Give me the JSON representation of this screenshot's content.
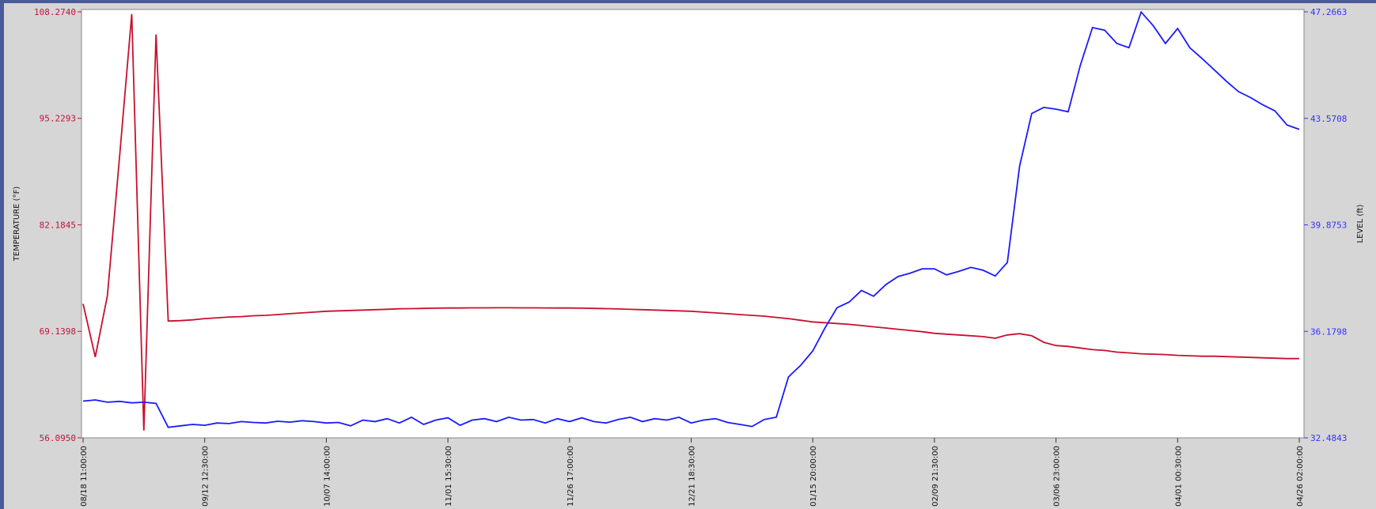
{
  "chart_data": {
    "type": "line",
    "ylabel": "TEMPERATURE (°F)",
    "y2label": "LEVEL (ft)",
    "categories": [
      "08/18 11:00:00",
      null,
      null,
      null,
      null,
      null,
      null,
      null,
      null,
      null,
      "09/12 12:30:00",
      null,
      null,
      null,
      null,
      null,
      null,
      null,
      null,
      null,
      "10/07 14:00:00",
      null,
      null,
      null,
      null,
      null,
      null,
      null,
      null,
      null,
      "11/01 15:30:00",
      null,
      null,
      null,
      null,
      null,
      null,
      null,
      null,
      null,
      "11/26 17:00:00",
      null,
      null,
      null,
      null,
      null,
      null,
      null,
      null,
      null,
      "12/21 18:30:00",
      null,
      null,
      null,
      null,
      null,
      null,
      null,
      null,
      null,
      "01/15 20:00:00",
      null,
      null,
      null,
      null,
      null,
      null,
      null,
      null,
      null,
      "02/09 21:30:00",
      null,
      null,
      null,
      null,
      null,
      null,
      null,
      null,
      null,
      "03/06 23:00:00",
      null,
      null,
      null,
      null,
      null,
      null,
      null,
      null,
      null,
      "04/01 00:30:00",
      null,
      null,
      null,
      null,
      null,
      null,
      null,
      null,
      null,
      "04/26 02:00:00"
    ],
    "series": [
      {
        "name": "TEMPERATURE",
        "color": "#c8102e",
        "axis": "y",
        "values": [
          72.5,
          66.0,
          73.5,
          90.5,
          108.0,
          57.0,
          105.5,
          70.4,
          70.45,
          70.55,
          70.7,
          70.8,
          70.9,
          70.95,
          71.05,
          71.1,
          71.2,
          71.3,
          71.4,
          71.5,
          71.6,
          71.65,
          71.7,
          71.75,
          71.8,
          71.85,
          71.9,
          71.92,
          71.95,
          71.98,
          72.0,
          72.0,
          72.02,
          72.02,
          72.03,
          72.03,
          72.02,
          72.02,
          72.01,
          72.0,
          72.0,
          71.98,
          71.95,
          71.92,
          71.88,
          71.84,
          71.8,
          71.75,
          71.7,
          71.65,
          71.6,
          71.5,
          71.4,
          71.3,
          71.2,
          71.1,
          71.0,
          70.85,
          70.7,
          70.5,
          70.3,
          70.2,
          70.1,
          70.0,
          69.85,
          69.7,
          69.55,
          69.4,
          69.25,
          69.1,
          68.9,
          68.8,
          68.7,
          68.6,
          68.5,
          68.3,
          68.7,
          68.85,
          68.6,
          67.8,
          67.4,
          67.3,
          67.1,
          66.9,
          66.8,
          66.6,
          66.5,
          66.4,
          66.35,
          66.3,
          66.2,
          66.15,
          66.1,
          66.1,
          66.05,
          66.0,
          65.95,
          65.9,
          65.85,
          65.8,
          65.8
        ]
      },
      {
        "name": "LEVEL",
        "color": "#1a1aff",
        "axis": "y2",
        "values": [
          33.76,
          33.8,
          33.72,
          33.75,
          33.7,
          33.72,
          33.68,
          32.85,
          32.9,
          32.95,
          32.92,
          33.0,
          32.98,
          33.05,
          33.02,
          33.0,
          33.06,
          33.03,
          33.08,
          33.05,
          33.0,
          33.02,
          32.9,
          33.1,
          33.05,
          33.15,
          33.0,
          33.2,
          32.95,
          33.1,
          33.18,
          32.92,
          33.1,
          33.15,
          33.05,
          33.2,
          33.1,
          33.12,
          33.0,
          33.15,
          33.05,
          33.18,
          33.05,
          33.0,
          33.12,
          33.2,
          33.05,
          33.15,
          33.1,
          33.2,
          33.0,
          33.1,
          33.15,
          33.02,
          32.95,
          32.88,
          33.12,
          33.2,
          34.6,
          35.0,
          35.5,
          36.3,
          37.0,
          37.2,
          37.6,
          37.4,
          37.8,
          38.08,
          38.2,
          38.35,
          38.35,
          38.14,
          38.26,
          38.4,
          38.3,
          38.1,
          38.57,
          41.9,
          43.74,
          43.95,
          43.89,
          43.8,
          45.41,
          46.72,
          46.63,
          46.17,
          46.02,
          47.26,
          46.78,
          46.17,
          46.69,
          46.02,
          45.65,
          45.26,
          44.86,
          44.5,
          44.29,
          44.04,
          43.83,
          43.34,
          43.19
        ]
      }
    ],
    "ylim": [
      56.095,
      108.274
    ],
    "yticks": [
      {
        "value": 56.095,
        "label": "56.0950"
      },
      69.1398,
      82.1845,
      95.2293,
      {
        "value": 108.274,
        "label": "108.2740"
      }
    ],
    "y2lim": [
      32.4843,
      47.2663
    ],
    "y2ticks": [
      32.4843,
      36.1798,
      39.8753,
      43.5708,
      47.2663
    ]
  }
}
